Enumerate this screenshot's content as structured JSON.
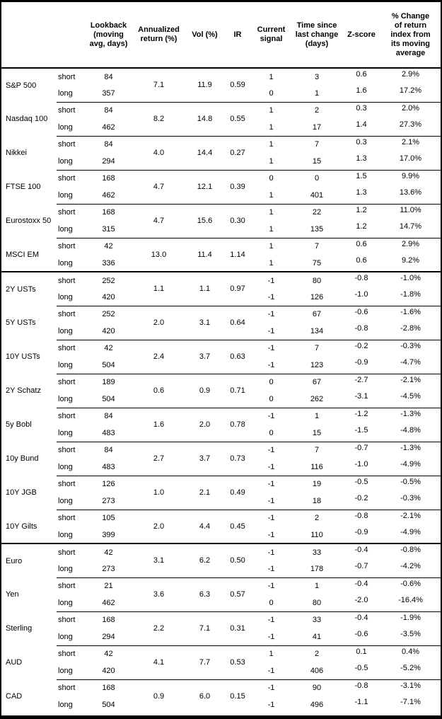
{
  "colors": {
    "text": "#000000",
    "background": "#ffffff",
    "border": "#000000"
  },
  "header": {
    "columns": [
      "Lookback (moving avg, days)",
      "Annualized return (%)",
      "Vol (%)",
      "IR",
      "Current signal",
      "Time since last change (days)",
      "Z-score",
      "% Change of return index from its moving average"
    ]
  },
  "row_labels": {
    "short": "short",
    "long": "long"
  },
  "groups": [
    [
      {
        "name": "S&P 500",
        "annualized_return": "7.1",
        "vol": "11.9",
        "ir": "0.59",
        "short": {
          "lookback": "84",
          "signal": "1",
          "days_since_change": "3",
          "z_score": "0.6",
          "pct_change": "2.9%"
        },
        "long": {
          "lookback": "357",
          "signal": "0",
          "days_since_change": "1",
          "z_score": "1.6",
          "pct_change": "17.2%"
        }
      },
      {
        "name": "Nasdaq 100",
        "annualized_return": "8.2",
        "vol": "14.8",
        "ir": "0.55",
        "short": {
          "lookback": "84",
          "signal": "1",
          "days_since_change": "2",
          "z_score": "0.3",
          "pct_change": "2.0%"
        },
        "long": {
          "lookback": "462",
          "signal": "1",
          "days_since_change": "17",
          "z_score": "1.4",
          "pct_change": "27.3%"
        }
      },
      {
        "name": "Nikkei",
        "annualized_return": "4.0",
        "vol": "14.4",
        "ir": "0.27",
        "short": {
          "lookback": "84",
          "signal": "1",
          "days_since_change": "7",
          "z_score": "0.3",
          "pct_change": "2.1%"
        },
        "long": {
          "lookback": "294",
          "signal": "1",
          "days_since_change": "15",
          "z_score": "1.3",
          "pct_change": "17.0%"
        }
      },
      {
        "name": "FTSE 100",
        "annualized_return": "4.7",
        "vol": "12.1",
        "ir": "0.39",
        "short": {
          "lookback": "168",
          "signal": "0",
          "days_since_change": "0",
          "z_score": "1.5",
          "pct_change": "9.9%"
        },
        "long": {
          "lookback": "462",
          "signal": "1",
          "days_since_change": "401",
          "z_score": "1.3",
          "pct_change": "13.6%"
        }
      },
      {
        "name": "Eurostoxx 50",
        "annualized_return": "4.7",
        "vol": "15.6",
        "ir": "0.30",
        "short": {
          "lookback": "168",
          "signal": "1",
          "days_since_change": "22",
          "z_score": "1.2",
          "pct_change": "11.0%"
        },
        "long": {
          "lookback": "315",
          "signal": "1",
          "days_since_change": "135",
          "z_score": "1.2",
          "pct_change": "14.7%"
        }
      },
      {
        "name": "MSCI EM",
        "annualized_return": "13.0",
        "vol": "11.4",
        "ir": "1.14",
        "short": {
          "lookback": "42",
          "signal": "1",
          "days_since_change": "7",
          "z_score": "0.6",
          "pct_change": "2.9%"
        },
        "long": {
          "lookback": "336",
          "signal": "1",
          "days_since_change": "75",
          "z_score": "0.6",
          "pct_change": "9.2%"
        }
      }
    ],
    [
      {
        "name": "2Y USTs",
        "annualized_return": "1.1",
        "vol": "1.1",
        "ir": "0.97",
        "short": {
          "lookback": "252",
          "signal": "-1",
          "days_since_change": "80",
          "z_score": "-0.8",
          "pct_change": "-1.0%"
        },
        "long": {
          "lookback": "420",
          "signal": "-1",
          "days_since_change": "126",
          "z_score": "-1.0",
          "pct_change": "-1.8%"
        }
      },
      {
        "name": "5Y USTs",
        "annualized_return": "2.0",
        "vol": "3.1",
        "ir": "0.64",
        "short": {
          "lookback": "252",
          "signal": "-1",
          "days_since_change": "67",
          "z_score": "-0.6",
          "pct_change": "-1.6%"
        },
        "long": {
          "lookback": "420",
          "signal": "-1",
          "days_since_change": "134",
          "z_score": "-0.8",
          "pct_change": "-2.8%"
        }
      },
      {
        "name": "10Y USTs",
        "annualized_return": "2.4",
        "vol": "3.7",
        "ir": "0.63",
        "short": {
          "lookback": "42",
          "signal": "-1",
          "days_since_change": "7",
          "z_score": "-0.2",
          "pct_change": "-0.3%"
        },
        "long": {
          "lookback": "504",
          "signal": "-1",
          "days_since_change": "123",
          "z_score": "-0.9",
          "pct_change": "-4.7%"
        }
      },
      {
        "name": "2Y Schatz",
        "annualized_return": "0.6",
        "vol": "0.9",
        "ir": "0.71",
        "short": {
          "lookback": "189",
          "signal": "0",
          "days_since_change": "67",
          "z_score": "-2.7",
          "pct_change": "-2.1%"
        },
        "long": {
          "lookback": "504",
          "signal": "0",
          "days_since_change": "262",
          "z_score": "-3.1",
          "pct_change": "-4.5%"
        }
      },
      {
        "name": "5y Bobl",
        "annualized_return": "1.6",
        "vol": "2.0",
        "ir": "0.78",
        "short": {
          "lookback": "84",
          "signal": "-1",
          "days_since_change": "1",
          "z_score": "-1.2",
          "pct_change": "-1.3%"
        },
        "long": {
          "lookback": "483",
          "signal": "0",
          "days_since_change": "15",
          "z_score": "-1.5",
          "pct_change": "-4.8%"
        }
      },
      {
        "name": "10y Bund",
        "annualized_return": "2.7",
        "vol": "3.7",
        "ir": "0.73",
        "short": {
          "lookback": "84",
          "signal": "-1",
          "days_since_change": "7",
          "z_score": "-0.7",
          "pct_change": "-1.3%"
        },
        "long": {
          "lookback": "483",
          "signal": "-1",
          "days_since_change": "116",
          "z_score": "-1.0",
          "pct_change": "-4.9%"
        }
      },
      {
        "name": "10Y JGB",
        "annualized_return": "1.0",
        "vol": "2.1",
        "ir": "0.49",
        "short": {
          "lookback": "126",
          "signal": "-1",
          "days_since_change": "19",
          "z_score": "-0.5",
          "pct_change": "-0.5%"
        },
        "long": {
          "lookback": "273",
          "signal": "-1",
          "days_since_change": "18",
          "z_score": "-0.2",
          "pct_change": "-0.3%"
        }
      },
      {
        "name": "10Y Gilts",
        "annualized_return": "2.0",
        "vol": "4.4",
        "ir": "0.45",
        "short": {
          "lookback": "105",
          "signal": "-1",
          "days_since_change": "2",
          "z_score": "-0.8",
          "pct_change": "-2.1%"
        },
        "long": {
          "lookback": "399",
          "signal": "-1",
          "days_since_change": "110",
          "z_score": "-0.9",
          "pct_change": "-4.9%"
        }
      }
    ],
    [
      {
        "name": "Euro",
        "annualized_return": "3.1",
        "vol": "6.2",
        "ir": "0.50",
        "short": {
          "lookback": "42",
          "signal": "-1",
          "days_since_change": "33",
          "z_score": "-0.4",
          "pct_change": "-0.8%"
        },
        "long": {
          "lookback": "273",
          "signal": "-1",
          "days_since_change": "178",
          "z_score": "-0.7",
          "pct_change": "-4.2%"
        }
      },
      {
        "name": "Yen",
        "annualized_return": "3.6",
        "vol": "6.3",
        "ir": "0.57",
        "short": {
          "lookback": "21",
          "signal": "-1",
          "days_since_change": "1",
          "z_score": "-0.4",
          "pct_change": "-0.6%"
        },
        "long": {
          "lookback": "462",
          "signal": "0",
          "days_since_change": "80",
          "z_score": "-2.0",
          "pct_change": "-16.4%"
        }
      },
      {
        "name": "Sterling",
        "annualized_return": "2.2",
        "vol": "7.1",
        "ir": "0.31",
        "short": {
          "lookback": "168",
          "signal": "-1",
          "days_since_change": "33",
          "z_score": "-0.4",
          "pct_change": "-1.9%"
        },
        "long": {
          "lookback": "294",
          "signal": "-1",
          "days_since_change": "41",
          "z_score": "-0.6",
          "pct_change": "-3.5%"
        }
      },
      {
        "name": "AUD",
        "annualized_return": "4.1",
        "vol": "7.7",
        "ir": "0.53",
        "short": {
          "lookback": "42",
          "signal": "1",
          "days_since_change": "2",
          "z_score": "0.1",
          "pct_change": "0.4%"
        },
        "long": {
          "lookback": "420",
          "signal": "-1",
          "days_since_change": "406",
          "z_score": "-0.5",
          "pct_change": "-5.2%"
        }
      },
      {
        "name": "CAD",
        "annualized_return": "0.9",
        "vol": "6.0",
        "ir": "0.15",
        "short": {
          "lookback": "168",
          "signal": "-1",
          "days_since_change": "90",
          "z_score": "-0.8",
          "pct_change": "-3.1%"
        },
        "long": {
          "lookback": "504",
          "signal": "-1",
          "days_since_change": "496",
          "z_score": "-1.1",
          "pct_change": "-7.1%"
        }
      }
    ]
  ]
}
